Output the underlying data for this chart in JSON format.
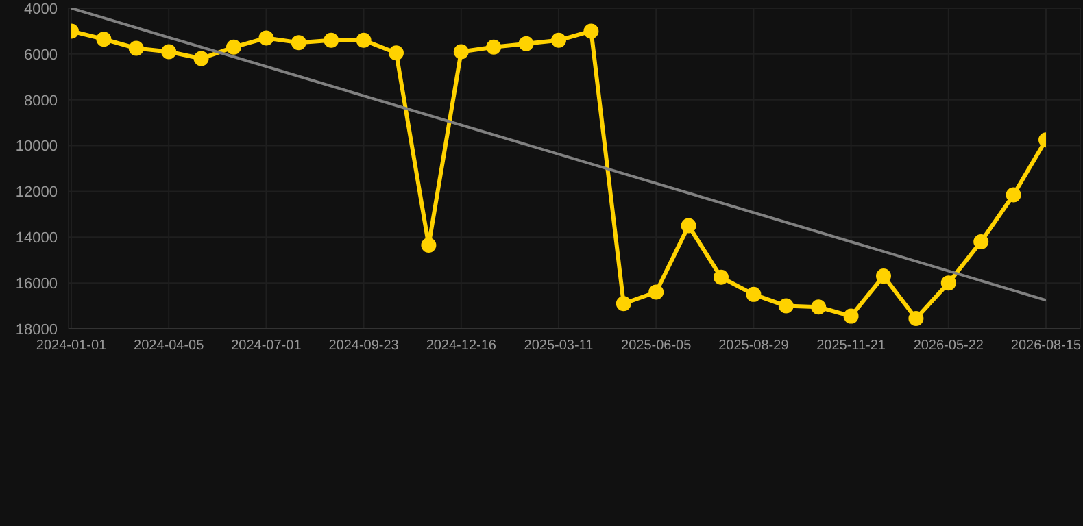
{
  "chart_data": {
    "type": "line",
    "categories": [
      "2024-01-01",
      null,
      null,
      "2024-04-05",
      null,
      null,
      "2024-07-01",
      null,
      null,
      "2024-09-23",
      null,
      null,
      "2024-12-16",
      null,
      null,
      "2025-03-11",
      null,
      null,
      "2025-06-05",
      null,
      null,
      "2025-08-29",
      null,
      null,
      "2025-11-21",
      null,
      null,
      "2026-05-22",
      null,
      null,
      "2026-08-15"
    ],
    "series": [
      {
        "color": "#ffd200",
        "marker": "circle",
        "values": [
          5000,
          5350,
          5750,
          5900,
          6200,
          5700,
          5300,
          5500,
          5400,
          5400,
          5950,
          14350,
          5900,
          5700,
          5550,
          5400,
          5000,
          16900,
          16400,
          13500,
          15750,
          16500,
          17000,
          17050,
          17450,
          15700,
          17550,
          16000,
          14200,
          12150,
          9750
        ]
      },
      {
        "type": "line",
        "color": "#808080",
        "marker": "none",
        "values": [
          4000,
          null,
          null,
          null,
          null,
          null,
          null,
          null,
          null,
          null,
          null,
          null,
          null,
          null,
          null,
          null,
          null,
          null,
          null,
          null,
          null,
          null,
          null,
          null,
          null,
          null,
          null,
          null,
          null,
          null,
          16750
        ]
      }
    ],
    "ylim": [
      18000,
      4000
    ],
    "yticks": [
      4000,
      6000,
      8000,
      10000,
      12000,
      14000,
      16000,
      18000
    ],
    "grid": true,
    "line_style": "solid"
  }
}
